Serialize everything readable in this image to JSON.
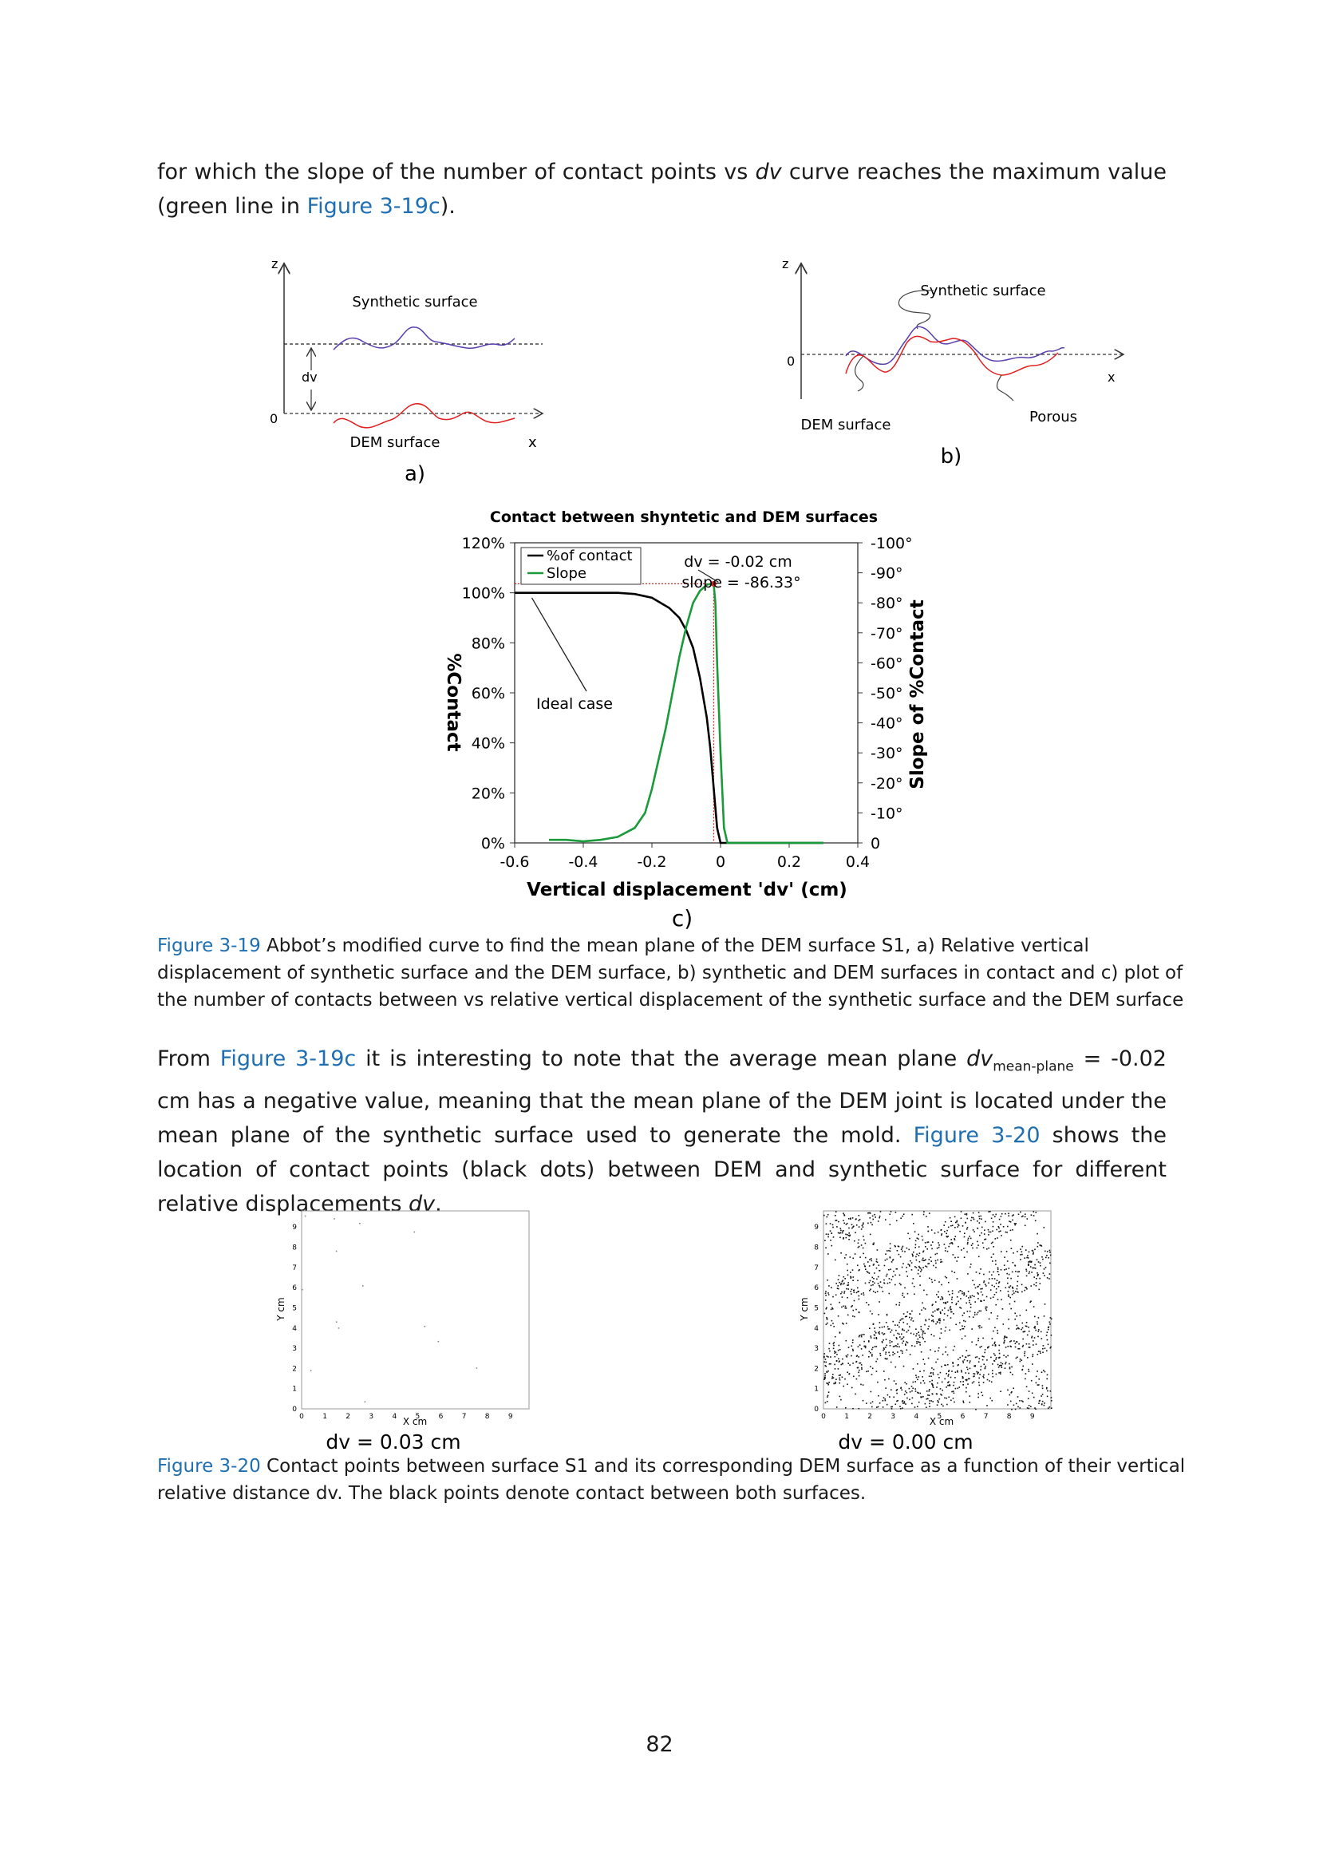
{
  "para1": {
    "text1": "for which the slope of the number of contact points vs ",
    "dv": "dv",
    "text2": " curve reaches the maximum value (green line in ",
    "link": "Figure 3-19c",
    "text3": ")."
  },
  "fig_a": {
    "z": "z",
    "synthetic": "Synthetic surface",
    "dv": "dv",
    "zero": "0",
    "dem": "DEM surface",
    "x": "x",
    "label": "a)"
  },
  "fig_b": {
    "z": "z",
    "synthetic": "Synthetic surface",
    "zero": "0",
    "x": "x",
    "dem": "DEM surface",
    "porous": "Porous",
    "label": "b)"
  },
  "chart_data": {
    "type": "line",
    "title": "Contact between shyntetic and DEM surfaces",
    "xlabel": "Vertical displacement 'dv' (cm)",
    "ylabel": "%Contact",
    "y2label": "Slope of %Contact",
    "xlim": [
      -0.6,
      0.4
    ],
    "ylim": [
      0,
      120
    ],
    "y2lim": [
      0,
      -100
    ],
    "x_ticks": [
      "-0.6",
      "-0.4",
      "-0.2",
      "0",
      "0.2",
      "0.4"
    ],
    "y_ticks": [
      "0%",
      "20%",
      "40%",
      "60%",
      "80%",
      "100%",
      "120%"
    ],
    "y2_ticks": [
      "0",
      "-10°",
      "-20°",
      "-30°",
      "-40°",
      "-50°",
      "-60°",
      "-70°",
      "-80°",
      "-90°",
      "-100°"
    ],
    "legend": [
      "%of contact",
      "Slope"
    ],
    "legend_position": "top-left",
    "annotation_ideal": "Ideal case",
    "annotation_peak_1": "dv = -0.02 cm",
    "annotation_peak_2": "slope = -86.33°",
    "peak": {
      "x": -0.02,
      "slope": -86.33
    },
    "series": [
      {
        "name": "%of contact",
        "color": "#000000",
        "x": [
          -0.6,
          -0.5,
          -0.4,
          -0.3,
          -0.25,
          -0.2,
          -0.15,
          -0.12,
          -0.1,
          -0.08,
          -0.06,
          -0.04,
          -0.03,
          -0.02,
          -0.01,
          0.0,
          0.3
        ],
        "y": [
          100,
          100,
          100,
          100,
          99.5,
          98,
          94,
          90,
          85,
          78,
          66,
          50,
          38,
          22,
          6,
          0,
          0
        ]
      },
      {
        "name": "Slope",
        "color": "#1a9a3a",
        "x": [
          -0.5,
          -0.45,
          -0.4,
          -0.35,
          -0.3,
          -0.25,
          -0.22,
          -0.2,
          -0.18,
          -0.16,
          -0.14,
          -0.12,
          -0.1,
          -0.08,
          -0.06,
          -0.04,
          -0.03,
          -0.02,
          -0.015,
          -0.01,
          0.0,
          0.01,
          0.02,
          0.3
        ],
        "y": [
          -1,
          -1,
          -0.5,
          -1,
          -2,
          -5,
          -10,
          -18,
          -28,
          -38,
          -50,
          -62,
          -72,
          -80,
          -84,
          -86,
          -86.3,
          -86.33,
          -80,
          -60,
          -30,
          -5,
          0,
          0
        ]
      }
    ]
  },
  "fig_c_label": "c)",
  "caption_1": {
    "label": "Figure 3-19",
    "text": " Abbot’s modified curve to find the mean plane of the DEM surface S1, a) Relative vertical displacement of synthetic surface and the DEM surface, b) synthetic and DEM surfaces in contact and c) plot of the number of contacts between vs relative vertical displacement of the synthetic surface and the DEM surface"
  },
  "para2": {
    "t1": "From ",
    "link1": "Figure 3-19c",
    "t2": " it is interesting to note that the average mean plane ",
    "dv": "dv",
    "sub": "mean-plane",
    "t3": " = -0.02 cm has a negative value, meaning that the mean plane of the DEM joint is located under the mean plane of the synthetic surface used to generate the mold. ",
    "link2": "Figure 3-20",
    "t4": " shows the location of contact points (black dots) between DEM and synthetic surface for different relative displacements ",
    "dv2": "dv",
    "t5": "."
  },
  "scatter_left": {
    "ylabel": "Y cm",
    "xlabel": "X cm",
    "ticks": [
      "0",
      "1",
      "2",
      "3",
      "4",
      "5",
      "6",
      "7",
      "8",
      "9"
    ],
    "label": "dv = 0.03 cm"
  },
  "scatter_right": {
    "ylabel": "Y cm",
    "xlabel": "X cm",
    "ticks": [
      "0",
      "1",
      "2",
      "3",
      "4",
      "5",
      "6",
      "7",
      "8",
      "9"
    ],
    "label": "dv = 0.00 cm"
  },
  "caption_2": {
    "label": "Figure 3-20",
    "text": " Contact points between surface S1 and its corresponding DEM surface as a function of their vertical relative distance dv. The black points denote contact between both surfaces."
  },
  "page_number": "82"
}
